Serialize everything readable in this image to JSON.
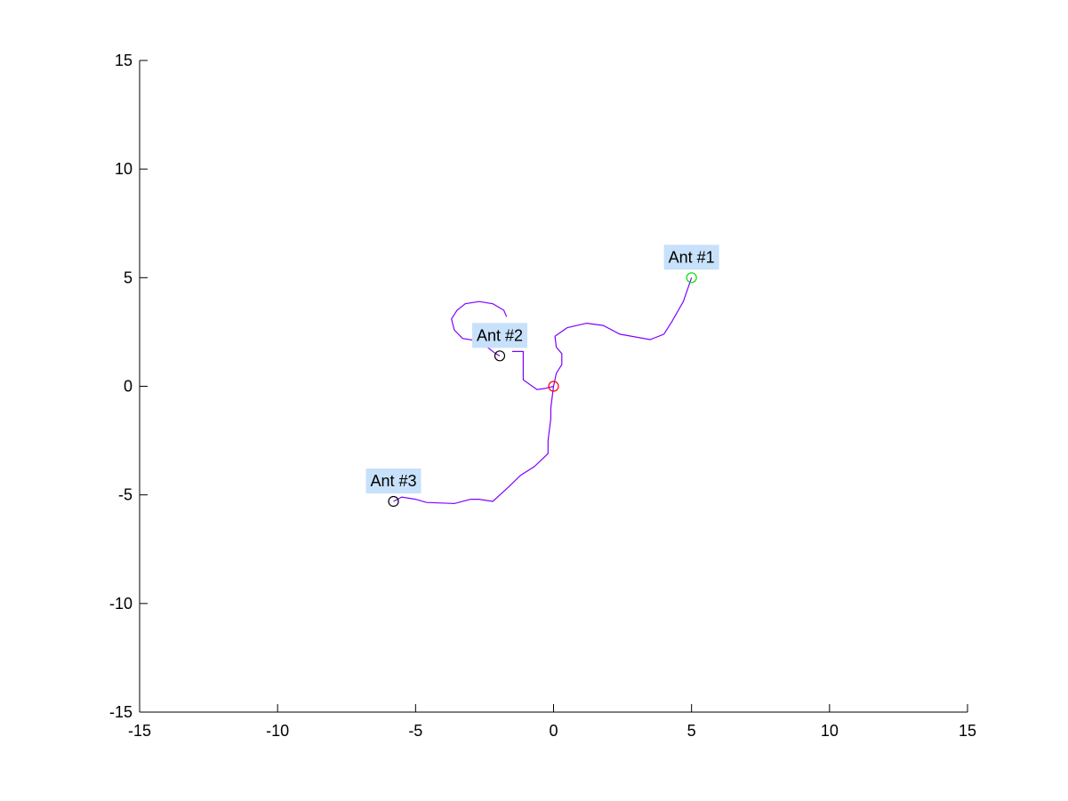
{
  "chart_data": {
    "type": "line",
    "title": "",
    "xlabel": "",
    "ylabel": "",
    "xlim": [
      -15,
      15
    ],
    "ylim": [
      -15,
      15
    ],
    "grid": false,
    "xticks": [
      -15,
      -10,
      -5,
      0,
      5,
      10,
      15
    ],
    "yticks": [
      -15,
      -10,
      -5,
      0,
      5,
      10,
      15
    ],
    "path_color": "#8000ff",
    "label_bg_color": "#c8e1fa",
    "series": [
      {
        "x": [
          -1.7,
          -1.8,
          -2.2,
          -2.7,
          -3.2,
          -3.5,
          -3.7,
          -3.6,
          -3.3,
          -2.8,
          -2.4,
          -2.1,
          -1.95
        ],
        "y": [
          3.2,
          3.5,
          3.8,
          3.9,
          3.8,
          3.5,
          3.1,
          2.6,
          2.2,
          2.1,
          1.8,
          1.5,
          1.4
        ]
      },
      {
        "x": [
          0.0,
          0.1,
          0.3,
          0.3,
          0.1,
          0.05,
          0.5,
          1.2,
          1.8,
          2.4,
          3.5,
          4.0,
          4.3,
          4.7,
          5.0
        ],
        "y": [
          0.0,
          0.6,
          1.0,
          1.5,
          1.8,
          2.3,
          2.7,
          2.9,
          2.8,
          2.4,
          2.15,
          2.4,
          3.0,
          3.9,
          5.0
        ]
      },
      {
        "x": [
          0.0,
          -0.3,
          -0.6,
          -1.1,
          -1.1,
          -1.5,
          -1.5
        ],
        "y": [
          0.0,
          -0.1,
          -0.15,
          0.3,
          1.6,
          1.6,
          1.6
        ]
      },
      {
        "x": [
          0.0,
          -0.1,
          -0.1,
          -0.15,
          -0.2,
          -0.2,
          -0.7,
          -1.2,
          -1.6,
          -2.2,
          -2.7,
          -3.0,
          -3.6,
          -4.6,
          -5.0,
          -5.5,
          -5.8
        ],
        "y": [
          0.0,
          -1.0,
          -1.5,
          -2.0,
          -2.5,
          -3.1,
          -3.7,
          -4.1,
          -4.6,
          -5.3,
          -5.2,
          -5.2,
          -5.4,
          -5.35,
          -5.2,
          -5.1,
          -5.3
        ]
      }
    ],
    "points": [
      {
        "name": "Ant #1",
        "x": 5.0,
        "y": 5.0,
        "color": "#00dd00",
        "label": "Ant #1"
      },
      {
        "name": "Ant #2",
        "x": -1.95,
        "y": 1.4,
        "color": "#000000",
        "label": "Ant #2"
      },
      {
        "name": "Ant #3",
        "x": -5.8,
        "y": -5.3,
        "color": "#000000",
        "label": "Ant #3"
      },
      {
        "name": "",
        "x": 0.0,
        "y": 0.0,
        "color": "#ff0000",
        "label": ""
      }
    ]
  }
}
